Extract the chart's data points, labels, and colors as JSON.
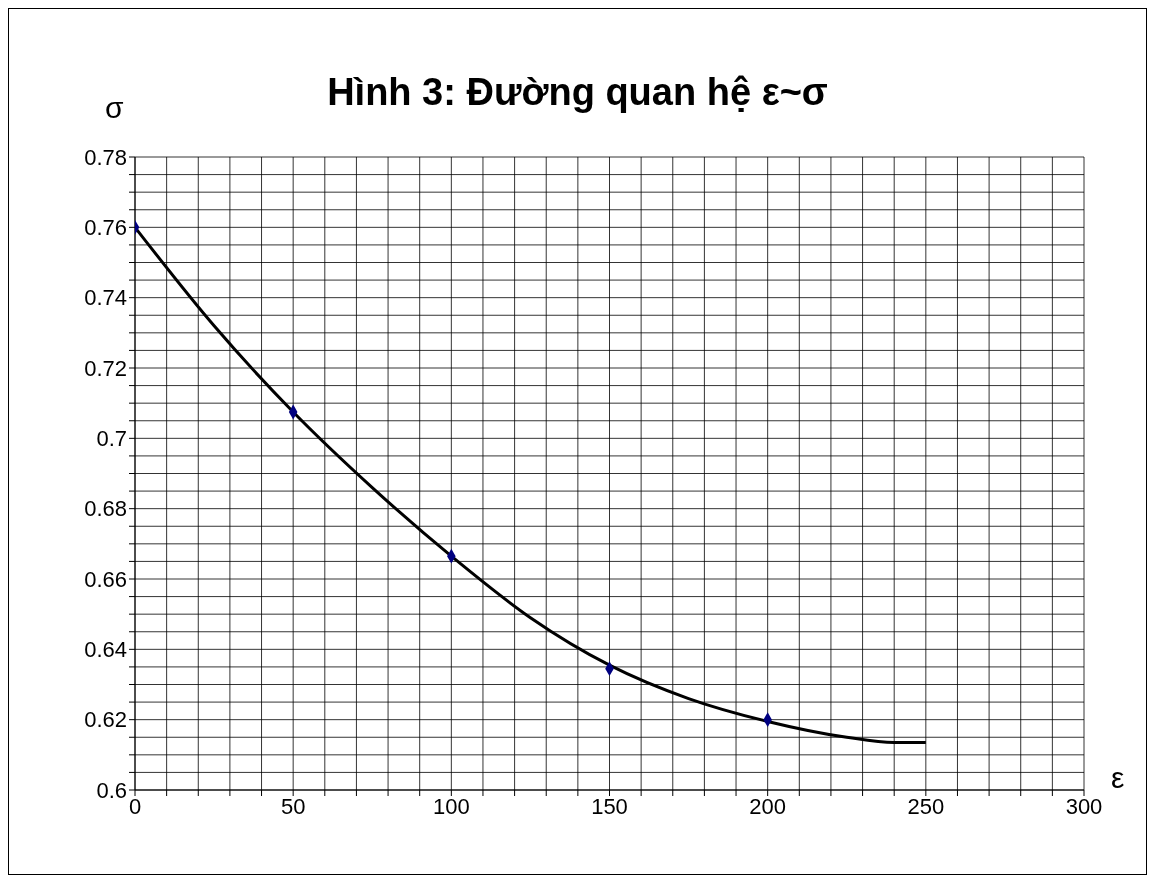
{
  "chart_data": {
    "type": "scatter",
    "title": "Hình 3: Đường quan hệ ε~σ",
    "xlabel": "ε",
    "ylabel": "σ",
    "xlim": [
      0,
      300
    ],
    "ylim": [
      0.6,
      0.78
    ],
    "xticks": [
      0,
      {
        "value": 10,
        "label": null
      },
      {
        "value": 20,
        "label": null
      },
      {
        "value": 30,
        "label": null
      },
      {
        "value": 40,
        "label": null
      },
      50,
      {
        "value": 60,
        "label": null
      },
      {
        "value": 70,
        "label": null
      },
      {
        "value": 80,
        "label": null
      },
      {
        "value": 90,
        "label": null
      },
      100,
      {
        "value": 110,
        "label": null
      },
      {
        "value": 120,
        "label": null
      },
      {
        "value": 130,
        "label": null
      },
      {
        "value": 140,
        "label": null
      },
      150,
      {
        "value": 160,
        "label": null
      },
      {
        "value": 170,
        "label": null
      },
      {
        "value": 180,
        "label": null
      },
      {
        "value": 190,
        "label": null
      },
      200,
      {
        "value": 210,
        "label": null
      },
      {
        "value": 220,
        "label": null
      },
      {
        "value": 230,
        "label": null
      },
      {
        "value": 240,
        "label": null
      },
      250,
      {
        "value": 260,
        "label": null
      },
      {
        "value": 270,
        "label": null
      },
      {
        "value": 280,
        "label": null
      },
      {
        "value": 290,
        "label": null
      },
      300
    ],
    "yticks": [
      0.6,
      {
        "value": 0.605,
        "label": null
      },
      {
        "value": 0.61,
        "label": null
      },
      {
        "value": 0.615,
        "label": null
      },
      0.62,
      {
        "value": 0.625,
        "label": null
      },
      {
        "value": 0.63,
        "label": null
      },
      {
        "value": 0.635,
        "label": null
      },
      0.64,
      {
        "value": 0.645,
        "label": null
      },
      {
        "value": 0.65,
        "label": null
      },
      {
        "value": 0.655,
        "label": null
      },
      0.66,
      {
        "value": 0.665,
        "label": null
      },
      {
        "value": 0.67,
        "label": null
      },
      {
        "value": 0.675,
        "label": null
      },
      0.68,
      {
        "value": 0.685,
        "label": null
      },
      {
        "value": 0.69,
        "label": null
      },
      {
        "value": 0.695,
        "label": null
      },
      {
        "value": 0.7,
        "label": "0.7"
      },
      {
        "value": 0.705,
        "label": null
      },
      {
        "value": 0.71,
        "label": null
      },
      {
        "value": 0.715,
        "label": null
      },
      0.72,
      {
        "value": 0.725,
        "label": null
      },
      {
        "value": 0.73,
        "label": null
      },
      {
        "value": 0.735,
        "label": null
      },
      0.74,
      {
        "value": 0.745,
        "label": null
      },
      {
        "value": 0.75,
        "label": null
      },
      {
        "value": 0.755,
        "label": null
      },
      0.76,
      {
        "value": 0.765,
        "label": null
      },
      {
        "value": 0.77,
        "label": null
      },
      {
        "value": 0.775,
        "label": null
      },
      0.78
    ],
    "grid": true,
    "series": [
      {
        "type": "scatter",
        "color": "#000080",
        "marker": "diamond",
        "x": [
          0,
          50,
          100,
          150,
          200
        ],
        "values": [
          0.76,
          0.7075,
          0.6665,
          0.6345,
          0.62
        ]
      },
      {
        "type": "line",
        "color": "#000000",
        "marker": "none",
        "line_style": "solid",
        "x": [
          0,
          25,
          50,
          75,
          100,
          125,
          150,
          175,
          200,
          225,
          240,
          250
        ],
        "values": [
          0.76,
          0.732,
          0.7075,
          0.686,
          0.6665,
          0.649,
          0.6355,
          0.626,
          0.6195,
          0.615,
          0.6135,
          0.6135
        ]
      }
    ]
  }
}
